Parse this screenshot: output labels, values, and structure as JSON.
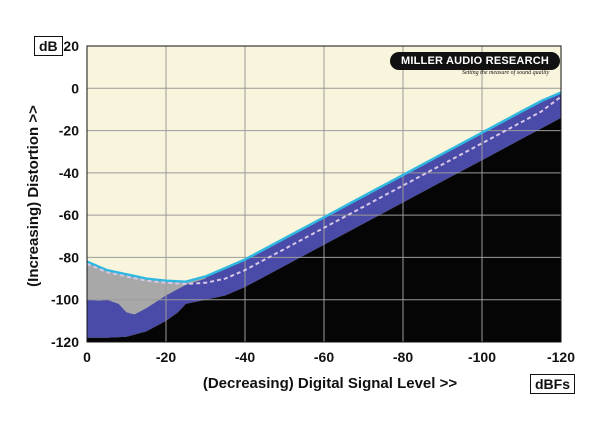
{
  "chart_data": {
    "type": "area",
    "xlabel": "(Decreasing) Digital Signal Level >>",
    "ylabel": "(Increasing) Distortion >>",
    "x_unit": "dBFs",
    "y_unit": "dB",
    "xlim": [
      0,
      -120
    ],
    "ylim": [
      -120,
      20
    ],
    "x_ticks": [
      0,
      -20,
      -40,
      -60,
      -80,
      -100,
      -120
    ],
    "y_ticks": [
      20,
      0,
      -20,
      -40,
      -60,
      -80,
      -100,
      -120
    ],
    "grid": true,
    "logo": {
      "name": "MILLER AUDIO RESEARCH",
      "tagline": "Setting the measure of sound quality"
    },
    "colors": {
      "plot_background": "#f8f5dc",
      "grey_band": "#a8a8a8",
      "blue_band": "#4a4aa8",
      "black_floor": "#050505",
      "cyan_line": "#30b8e0",
      "dashed_line": "#d8c8e8"
    },
    "series": [
      {
        "role": "cyan_trace",
        "x": [
          0,
          -5,
          -10,
          -15,
          -20,
          -25,
          -30,
          -35,
          -40,
          -50,
          -60,
          -70,
          -80,
          -90,
          -100,
          -110,
          -115,
          -120
        ],
        "y": [
          -82,
          -86,
          -88,
          -90,
          -91,
          -91.5,
          -89,
          -85,
          -81,
          -71,
          -61,
          -51,
          -41,
          -31,
          -21,
          -11,
          -6,
          -2
        ]
      },
      {
        "role": "dashed_trace",
        "x": [
          0,
          -5,
          -10,
          -15,
          -20,
          -25,
          -30,
          -35,
          -40,
          -50,
          -60,
          -70,
          -80,
          -90,
          -100,
          -110,
          -115,
          -120
        ],
        "y": [
          -83,
          -87,
          -89,
          -91,
          -92,
          -92.5,
          -92,
          -90,
          -86,
          -76,
          -66,
          -56,
          -46,
          -36,
          -26,
          -16,
          -11,
          -4
        ]
      },
      {
        "role": "grey_band_lower",
        "x": [
          0,
          -3,
          -5,
          -8,
          -10,
          -12,
          -15,
          -20,
          -25,
          -30
        ],
        "y": [
          -100,
          -100.5,
          -100,
          -102,
          -106,
          -107,
          -104,
          -98,
          -93,
          -90
        ]
      },
      {
        "role": "blue_band_lower",
        "x": [
          0,
          -5,
          -10,
          -15,
          -20,
          -23,
          -25,
          -30,
          -35,
          -40,
          -50,
          -60,
          -70,
          -80,
          -90,
          -100,
          -110,
          -120
        ],
        "y": [
          -118,
          -118,
          -117.5,
          -115,
          -110,
          -106,
          -102,
          -100,
          -98,
          -94,
          -84,
          -74,
          -64,
          -54,
          -44,
          -34,
          -24,
          -14
        ]
      }
    ]
  }
}
